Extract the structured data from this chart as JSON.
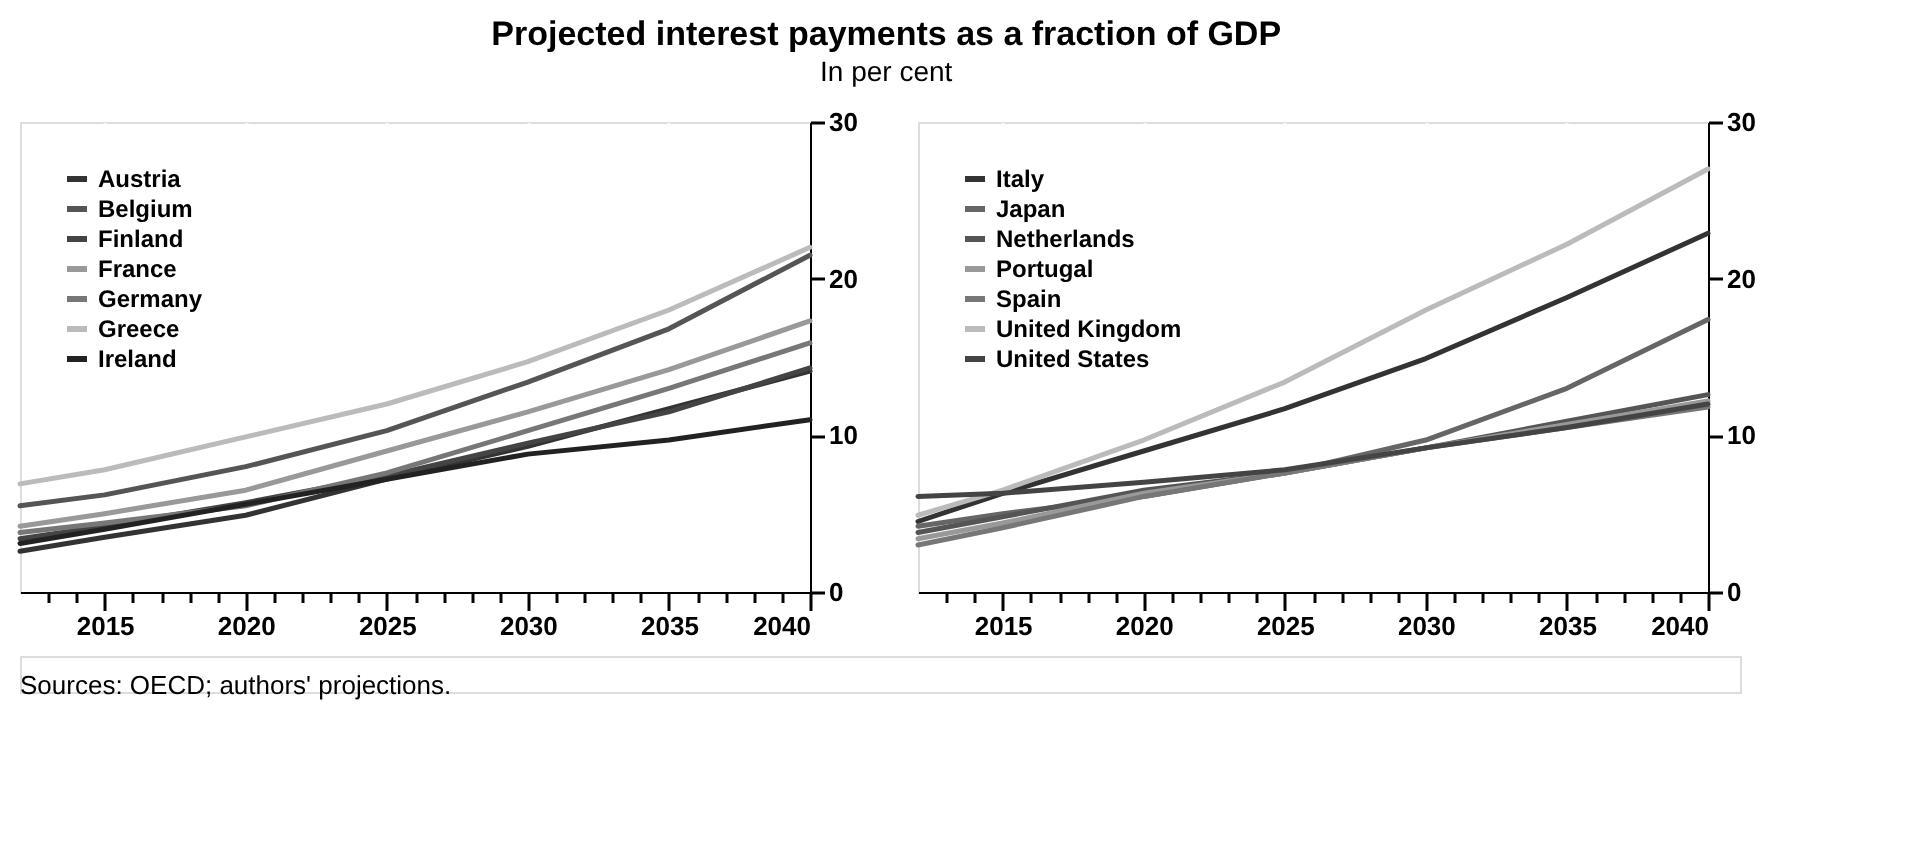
{
  "chart_data": [
    {
      "type": "line",
      "title": "Projected interest payments as a fraction of GDP",
      "subtitle": "In per cent",
      "legend": "top left",
      "grid": "x",
      "line_style": "solid",
      "marker": "none",
      "x": [
        2012,
        2015,
        2020,
        2025,
        2030,
        2035,
        2040
      ],
      "xlim": [
        2012,
        2040
      ],
      "ylim": [
        0,
        30
      ],
      "yticks": [
        0,
        10,
        20,
        30
      ],
      "xticks": [
        {
          "value": 2013,
          "label": null
        },
        {
          "value": 2014,
          "label": null
        },
        2015,
        {
          "value": 2016,
          "label": null
        },
        {
          "value": 2017,
          "label": null
        },
        {
          "value": 2018,
          "label": null
        },
        {
          "value": 2019,
          "label": null
        },
        2020,
        {
          "value": 2021,
          "label": null
        },
        {
          "value": 2022,
          "label": null
        },
        {
          "value": 2023,
          "label": null
        },
        {
          "value": 2024,
          "label": null
        },
        2025,
        {
          "value": 2026,
          "label": null
        },
        {
          "value": 2027,
          "label": null
        },
        {
          "value": 2028,
          "label": null
        },
        {
          "value": 2029,
          "label": null
        },
        2030,
        {
          "value": 2031,
          "label": null
        },
        {
          "value": 2032,
          "label": null
        },
        {
          "value": 2033,
          "label": null
        },
        {
          "value": 2034,
          "label": null
        },
        2035,
        {
          "value": 2036,
          "label": null
        },
        {
          "value": 2037,
          "label": null
        },
        {
          "value": 2038,
          "label": null
        },
        {
          "value": 2039,
          "label": null
        },
        2040
      ],
      "series": [
        {
          "name": "Austria",
          "color": "#333333",
          "values": [
            2.6,
            3.5,
            4.9,
            7.2,
            9.3,
            11.7,
            14.1
          ]
        },
        {
          "name": "Belgium",
          "color": "#555555",
          "values": [
            5.5,
            6.2,
            8.0,
            10.3,
            13.4,
            16.8,
            21.5
          ]
        },
        {
          "name": "Finland",
          "color": "#444444",
          "values": [
            3.4,
            4.2,
            5.7,
            7.4,
            9.5,
            11.5,
            14.3
          ]
        },
        {
          "name": "France",
          "color": "#999999",
          "values": [
            4.2,
            5.0,
            6.5,
            9.0,
            11.5,
            14.2,
            17.3
          ]
        },
        {
          "name": "Germany",
          "color": "#777777",
          "values": [
            3.8,
            4.4,
            5.5,
            7.6,
            10.3,
            13.0,
            15.9
          ]
        },
        {
          "name": "Greece",
          "color": "#bbbbbb",
          "values": [
            6.9,
            7.8,
            9.9,
            12.0,
            14.7,
            18.0,
            22.0
          ]
        },
        {
          "name": "Ireland",
          "color": "#222222",
          "values": [
            3.1,
            4.0,
            5.6,
            7.2,
            8.8,
            9.7,
            11.0
          ]
        }
      ]
    },
    {
      "type": "line",
      "legend": "top left",
      "grid": "x",
      "line_style": "solid",
      "marker": "none",
      "x": [
        2012,
        2015,
        2020,
        2025,
        2030,
        2035,
        2040
      ],
      "xlim": [
        2012,
        2040
      ],
      "ylim": [
        0,
        30
      ],
      "yticks": [
        0,
        10,
        20,
        30
      ],
      "xticks": [
        {
          "value": 2013,
          "label": null
        },
        {
          "value": 2014,
          "label": null
        },
        2015,
        {
          "value": 2016,
          "label": null
        },
        {
          "value": 2017,
          "label": null
        },
        {
          "value": 2018,
          "label": null
        },
        {
          "value": 2019,
          "label": null
        },
        2020,
        {
          "value": 2021,
          "label": null
        },
        {
          "value": 2022,
          "label": null
        },
        {
          "value": 2023,
          "label": null
        },
        {
          "value": 2024,
          "label": null
        },
        2025,
        {
          "value": 2026,
          "label": null
        },
        {
          "value": 2027,
          "label": null
        },
        {
          "value": 2028,
          "label": null
        },
        {
          "value": 2029,
          "label": null
        },
        2030,
        {
          "value": 2031,
          "label": null
        },
        {
          "value": 2032,
          "label": null
        },
        {
          "value": 2033,
          "label": null
        },
        {
          "value": 2034,
          "label": null
        },
        2035,
        {
          "value": 2036,
          "label": null
        },
        {
          "value": 2037,
          "label": null
        },
        {
          "value": 2038,
          "label": null
        },
        {
          "value": 2039,
          "label": null
        },
        2040
      ],
      "annotations": [
        "Sources: OECD; authors' projections."
      ],
      "series": [
        {
          "name": "Italy",
          "color": "#333333",
          "values": [
            4.5,
            6.3,
            9.0,
            11.7,
            14.9,
            18.8,
            22.9
          ]
        },
        {
          "name": "Japan",
          "color": "#666666",
          "values": [
            4.2,
            5.0,
            6.1,
            7.6,
            9.7,
            13.0,
            17.4
          ]
        },
        {
          "name": "Netherlands",
          "color": "#555555",
          "values": [
            3.8,
            4.8,
            6.5,
            7.6,
            9.2,
            10.9,
            12.6
          ]
        },
        {
          "name": "Portugal",
          "color": "#999999",
          "values": [
            3.4,
            4.4,
            6.3,
            7.6,
            9.2,
            10.7,
            12.2
          ]
        },
        {
          "name": "Spain",
          "color": "#777777",
          "values": [
            3.0,
            4.1,
            6.1,
            7.6,
            9.2,
            10.5,
            11.8
          ]
        },
        {
          "name": "United Kingdom",
          "color": "#bbbbbb",
          "values": [
            4.9,
            6.5,
            9.7,
            13.4,
            18.0,
            22.2,
            27.0
          ]
        },
        {
          "name": "United States",
          "color": "#444444",
          "values": [
            6.1,
            6.3,
            7.0,
            7.8,
            9.2,
            10.5,
            12.0
          ]
        }
      ]
    }
  ]
}
